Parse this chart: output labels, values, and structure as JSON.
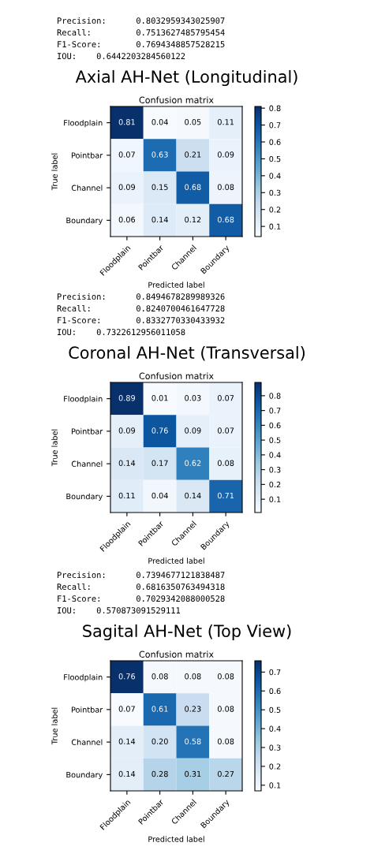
{
  "chart_data": [
    {
      "type": "heatmap",
      "title": "Axial AH-Net (Longitudinal)",
      "subtitle": "Confusion matrix",
      "xlabel": "Predicted label",
      "ylabel": "True label",
      "annotations": [
        "Precision:      0.8032959343025907",
        "Recall:         0.7513627485795454",
        "F1-Score:       0.7694348857528215",
        "IOU:    0.6442203284560122"
      ],
      "categories": [
        "Floodplain",
        "Pointbar",
        "Channel",
        "Boundary"
      ],
      "y_categories": [
        "Floodplain",
        "Pointbar",
        "Channel",
        "Boundary"
      ],
      "cells": [
        [
          0.81,
          0.04,
          0.05,
          0.11
        ],
        [
          0.07,
          0.63,
          0.21,
          0.09
        ],
        [
          0.09,
          0.15,
          0.68,
          0.08
        ],
        [
          0.06,
          0.14,
          0.12,
          0.68
        ]
      ],
      "clim": [
        0.04,
        0.81
      ],
      "cticks": [
        0.1,
        0.2,
        0.3,
        0.4,
        0.5,
        0.6,
        0.7,
        0.8
      ],
      "data_labels": true
    },
    {
      "type": "heatmap",
      "title": "Coronal AH-Net (Transversal)",
      "subtitle": "Confusion matrix",
      "xlabel": "Predicted label",
      "ylabel": "True label",
      "annotations": [
        "Precision:      0.8494678289989326",
        "Recall:         0.8240700461647728",
        "F1-Score:       0.8332770330433932",
        "IOU:    0.7322612956011058"
      ],
      "categories": [
        "Floodplain",
        "Pointbar",
        "Channel",
        "Boundary"
      ],
      "y_categories": [
        "Floodplain",
        "Pointbar",
        "Channel",
        "Boundary"
      ],
      "cells": [
        [
          0.89,
          0.01,
          0.03,
          0.07
        ],
        [
          0.09,
          0.76,
          0.09,
          0.07
        ],
        [
          0.14,
          0.17,
          0.62,
          0.08
        ],
        [
          0.11,
          0.04,
          0.14,
          0.71
        ]
      ],
      "clim": [
        0.01,
        0.89
      ],
      "cticks": [
        0.1,
        0.2,
        0.3,
        0.4,
        0.5,
        0.6,
        0.7,
        0.8
      ],
      "data_labels": true
    },
    {
      "type": "heatmap",
      "title": "Sagital AH-Net (Top View)",
      "subtitle": "Confusion matrix",
      "xlabel": "Predicted label",
      "ylabel": "True label",
      "annotations": [
        "Precision:      0.7394677121838487",
        "Recall:         0.6816350763494318",
        "F1-Score:       0.7029342088000528",
        "IOU:    0.570873091529111"
      ],
      "categories": [
        "Floodplain",
        "Pointbar",
        "Channel",
        "Boundary"
      ],
      "y_categories": [
        "Floodplain",
        "Pointbar",
        "Channel",
        "Boundary"
      ],
      "cells": [
        [
          0.76,
          0.08,
          0.08,
          0.08
        ],
        [
          0.07,
          0.61,
          0.23,
          0.08
        ],
        [
          0.14,
          0.2,
          0.58,
          0.08
        ],
        [
          0.14,
          0.28,
          0.31,
          0.27
        ]
      ],
      "cell_labels": [
        [
          "0.76",
          "0.08",
          "0.08",
          "0.08"
        ],
        [
          "0.07",
          "0.61",
          "0.23",
          "0.08"
        ],
        [
          "0.14",
          "0.20",
          "0.58",
          "0.08"
        ],
        [
          "0.14",
          "0.28",
          "0.31",
          "0.27"
        ]
      ],
      "clim": [
        0.07,
        0.76
      ],
      "cticks": [
        0.1,
        0.2,
        0.3,
        0.4,
        0.5,
        0.6,
        0.7
      ],
      "data_labels": true
    }
  ]
}
